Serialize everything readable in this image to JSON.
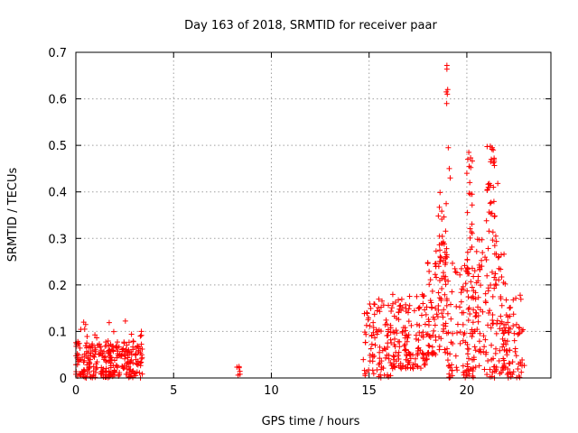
{
  "chart_data": {
    "type": "scatter",
    "title": "Day 163 of 2018, SRMTID for receiver paar",
    "xlabel": "GPS time / hours",
    "ylabel": "SRMTID / TECUs",
    "xlim": [
      0,
      24.3
    ],
    "ylim": [
      0,
      0.7
    ],
    "xticks": [
      0,
      5,
      10,
      15,
      20
    ],
    "yticks": [
      0,
      0.1,
      0.2,
      0.3,
      0.4,
      0.5,
      0.6,
      0.7
    ],
    "grid": true,
    "series": [
      {
        "name": "SRMTID",
        "marker": "plus",
        "color": "#ff0000",
        "clusters": [
          {
            "x_range": [
              0.0,
              3.4
            ],
            "y_range": [
              0.0,
              0.08
            ],
            "count": 260
          },
          {
            "x_range": [
              0.2,
              3.4
            ],
            "y_range": [
              0.05,
              0.125
            ],
            "count": 25
          },
          {
            "x_range": [
              8.2,
              8.4
            ],
            "y_range": [
              0.0,
              0.025
            ],
            "count": 4
          },
          {
            "x_range": [
              14.7,
              16.0
            ],
            "y_range": [
              0.0,
              0.17
            ],
            "count": 80
          },
          {
            "x_range": [
              16.0,
              18.0
            ],
            "y_range": [
              0.02,
              0.18
            ],
            "count": 150
          },
          {
            "x_range": [
              18.0,
              19.0
            ],
            "y_range": [
              0.05,
              0.3
            ],
            "count": 90
          },
          {
            "x_range": [
              18.5,
              19.0
            ],
            "y_range": [
              0.25,
              0.4
            ],
            "count": 20
          },
          {
            "x_range": [
              19.0,
              20.5
            ],
            "y_range": [
              0.0,
              0.25
            ],
            "count": 110
          },
          {
            "x_range": [
              20.0,
              20.3
            ],
            "y_range": [
              0.2,
              0.48
            ],
            "count": 25
          },
          {
            "x_range": [
              20.5,
              22.0
            ],
            "y_range": [
              0.0,
              0.3
            ],
            "count": 120
          },
          {
            "x_range": [
              21.0,
              21.6
            ],
            "y_range": [
              0.3,
              0.5
            ],
            "count": 25
          },
          {
            "x_range": [
              21.8,
              23.0
            ],
            "y_range": [
              0.0,
              0.18
            ],
            "count": 70
          }
        ],
        "points": [
          [
            18.98,
            0.672
          ],
          [
            18.98,
            0.664
          ],
          [
            18.95,
            0.615
          ],
          [
            19.0,
            0.61
          ],
          [
            19.02,
            0.62
          ],
          [
            18.97,
            0.59
          ],
          [
            19.05,
            0.495
          ],
          [
            19.1,
            0.45
          ],
          [
            19.15,
            0.43
          ],
          [
            20.1,
            0.485
          ],
          [
            20.05,
            0.47
          ],
          [
            20.12,
            0.455
          ],
          [
            20.15,
            0.42
          ],
          [
            20.0,
            0.44
          ],
          [
            21.2,
            0.498
          ],
          [
            21.3,
            0.495
          ],
          [
            21.35,
            0.49
          ],
          [
            21.25,
            0.47
          ],
          [
            21.4,
            0.465
          ],
          [
            21.1,
            0.41
          ],
          [
            21.05,
            0.405
          ],
          [
            21.15,
            0.41
          ],
          [
            0.4,
            0.12
          ],
          [
            0.5,
            0.115
          ],
          [
            0.45,
            0.105
          ],
          [
            3.35,
            0.1
          ],
          [
            3.3,
            0.09
          ],
          [
            8.35,
            0.022
          ],
          [
            8.3,
            0.006
          ],
          [
            14.8,
            0.005
          ],
          [
            16.1,
            0.005
          ],
          [
            20.3,
            0.004
          ],
          [
            15.5,
            0.003
          ]
        ]
      }
    ]
  }
}
